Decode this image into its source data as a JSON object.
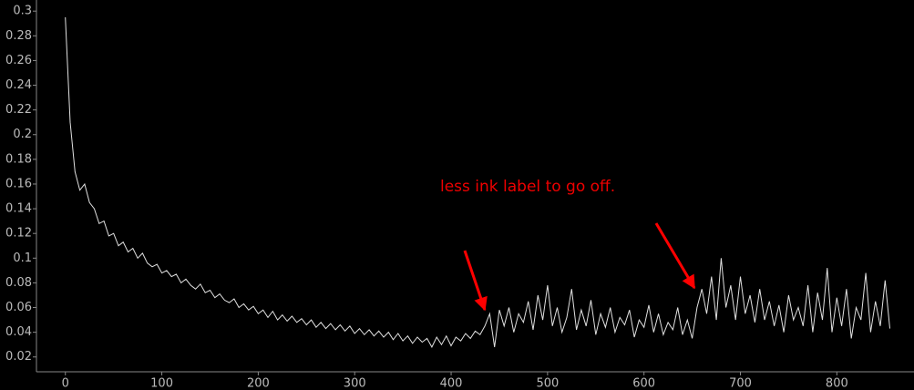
{
  "chart_data": {
    "type": "line",
    "annotation": "less ink label to go off.",
    "xlim": [
      -30,
      880
    ],
    "ylim": [
      0.008,
      0.309
    ],
    "xticks": [
      0,
      100,
      200,
      300,
      400,
      500,
      600,
      700,
      800
    ],
    "yticks": [
      0.02,
      0.04,
      0.06,
      0.08,
      0.1,
      0.12,
      0.14,
      0.16,
      0.18,
      0.2,
      0.22,
      0.24,
      0.26,
      0.28,
      0.3
    ],
    "series": [
      {
        "color": "#e0e0e0",
        "x": [
          0,
          5,
          10,
          15,
          20,
          25,
          30,
          35,
          40,
          45,
          50,
          55,
          60,
          65,
          70,
          75,
          80,
          85,
          90,
          95,
          100,
          105,
          110,
          115,
          120,
          125,
          130,
          135,
          140,
          145,
          150,
          155,
          160,
          165,
          170,
          175,
          180,
          185,
          190,
          195,
          200,
          205,
          210,
          215,
          220,
          225,
          230,
          235,
          240,
          245,
          250,
          255,
          260,
          265,
          270,
          275,
          280,
          285,
          290,
          295,
          300,
          305,
          310,
          315,
          320,
          325,
          330,
          335,
          340,
          345,
          350,
          355,
          360,
          365,
          370,
          375,
          380,
          385,
          390,
          395,
          400,
          405,
          410,
          415,
          420,
          425,
          430,
          435,
          440,
          445,
          450,
          455,
          460,
          465,
          470,
          475,
          480,
          485,
          490,
          495,
          500,
          505,
          510,
          515,
          520,
          525,
          530,
          535,
          540,
          545,
          550,
          555,
          560,
          565,
          570,
          575,
          580,
          585,
          590,
          595,
          600,
          605,
          610,
          615,
          620,
          625,
          630,
          635,
          640,
          645,
          650,
          655,
          660,
          665,
          670,
          675,
          680,
          685,
          690,
          695,
          700,
          705,
          710,
          715,
          720,
          725,
          730,
          735,
          740,
          745,
          750,
          755,
          760,
          765,
          770,
          775,
          780,
          785,
          790,
          795,
          800,
          805,
          810,
          815,
          820,
          825,
          830,
          835,
          840,
          845,
          850,
          855
        ],
        "values": [
          0.295,
          0.21,
          0.17,
          0.155,
          0.16,
          0.145,
          0.14,
          0.128,
          0.13,
          0.118,
          0.12,
          0.11,
          0.113,
          0.105,
          0.108,
          0.1,
          0.104,
          0.096,
          0.093,
          0.095,
          0.088,
          0.09,
          0.085,
          0.087,
          0.08,
          0.083,
          0.078,
          0.075,
          0.079,
          0.072,
          0.074,
          0.068,
          0.071,
          0.066,
          0.064,
          0.067,
          0.06,
          0.063,
          0.058,
          0.061,
          0.055,
          0.058,
          0.052,
          0.057,
          0.05,
          0.054,
          0.049,
          0.053,
          0.048,
          0.051,
          0.046,
          0.05,
          0.044,
          0.048,
          0.043,
          0.047,
          0.042,
          0.046,
          0.041,
          0.045,
          0.039,
          0.043,
          0.038,
          0.042,
          0.037,
          0.041,
          0.036,
          0.04,
          0.034,
          0.039,
          0.033,
          0.037,
          0.031,
          0.036,
          0.032,
          0.035,
          0.028,
          0.036,
          0.03,
          0.037,
          0.029,
          0.036,
          0.033,
          0.039,
          0.035,
          0.041,
          0.038,
          0.045,
          0.055,
          0.028,
          0.058,
          0.045,
          0.06,
          0.04,
          0.055,
          0.048,
          0.065,
          0.042,
          0.07,
          0.05,
          0.078,
          0.045,
          0.06,
          0.04,
          0.052,
          0.075,
          0.042,
          0.058,
          0.045,
          0.066,
          0.038,
          0.055,
          0.044,
          0.06,
          0.04,
          0.052,
          0.046,
          0.058,
          0.036,
          0.05,
          0.044,
          0.062,
          0.04,
          0.055,
          0.038,
          0.048,
          0.042,
          0.06,
          0.038,
          0.05,
          0.035,
          0.06,
          0.075,
          0.055,
          0.085,
          0.05,
          0.1,
          0.06,
          0.078,
          0.05,
          0.085,
          0.055,
          0.07,
          0.048,
          0.075,
          0.05,
          0.065,
          0.045,
          0.062,
          0.04,
          0.07,
          0.05,
          0.06,
          0.045,
          0.078,
          0.04,
          0.072,
          0.05,
          0.092,
          0.04,
          0.068,
          0.045,
          0.075,
          0.035,
          0.06,
          0.05,
          0.088,
          0.04,
          0.065,
          0.045,
          0.082,
          0.043
        ]
      }
    ]
  }
}
